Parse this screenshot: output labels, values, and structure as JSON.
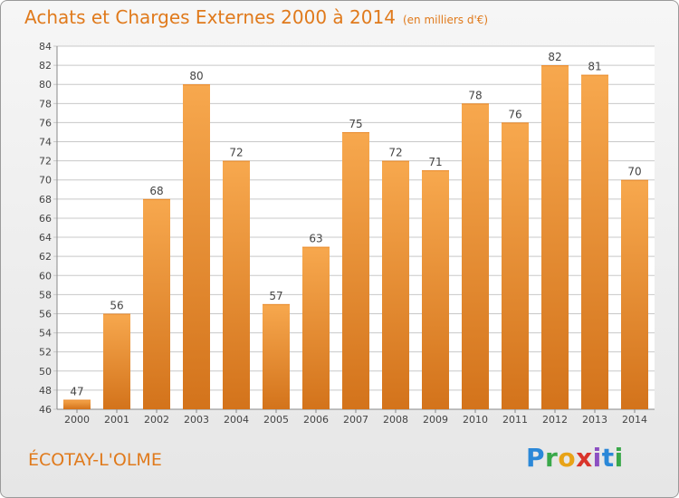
{
  "title": "Achats et Charges Externes 2000 à 2014",
  "subtitle": "(en milliers d'€)",
  "place": "ÉCOTAY-L'OLME",
  "logo": {
    "text": "Proxiti"
  },
  "colors": {
    "bar_light": "#f7a84e",
    "bar_dark": "#d3731b",
    "title": "#e07a1c",
    "grid": "#c8c8c8"
  },
  "chart_data": {
    "type": "bar",
    "title": "Achats et Charges Externes 2000 à 2014",
    "subtitle": "(en milliers d'€)",
    "categories": [
      "2000",
      "2001",
      "2002",
      "2003",
      "2004",
      "2005",
      "2006",
      "2007",
      "2008",
      "2009",
      "2010",
      "2011",
      "2012",
      "2013",
      "2014"
    ],
    "values": [
      47,
      56,
      68,
      80,
      72,
      57,
      63,
      75,
      72,
      71,
      78,
      76,
      82,
      81,
      70
    ],
    "ylim": [
      46,
      84
    ],
    "yticks": [
      46,
      48,
      50,
      52,
      54,
      56,
      58,
      60,
      62,
      64,
      66,
      68,
      70,
      72,
      74,
      76,
      78,
      80,
      82,
      84
    ],
    "grid": true,
    "data_labels": true
  }
}
